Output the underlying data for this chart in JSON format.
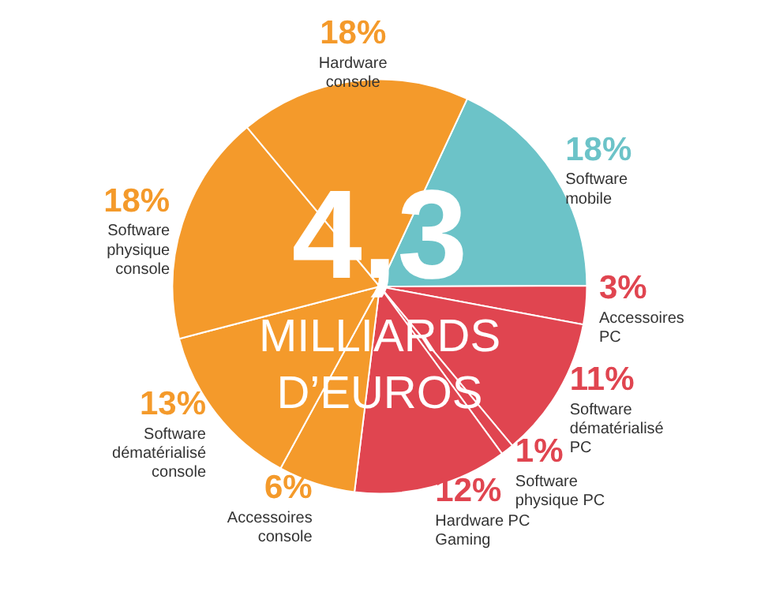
{
  "chart_data": {
    "type": "pie",
    "categories": [
      "Software mobile",
      "Accessoires PC",
      "Software dématérialisé PC",
      "Software physique PC",
      "Hardware PC Gaming",
      "Accessoires console",
      "Software dématérialisé console",
      "Software physique console",
      "Hardware console"
    ],
    "values": [
      18,
      3,
      11,
      1,
      12,
      6,
      13,
      18,
      18
    ],
    "value_labels": [
      "18%",
      "3%",
      "11%",
      "1%",
      "12%",
      "6%",
      "13%",
      "18%",
      "18%"
    ],
    "colors": [
      "#6cc3c8",
      "#e04550",
      "#e04550",
      "#e04550",
      "#e04550",
      "#f49a2b",
      "#f49a2b",
      "#f49a2b",
      "#f49a2b"
    ],
    "annotations": [
      "4,3",
      "MILLIARDS",
      "D’EUROS"
    ]
  }
}
